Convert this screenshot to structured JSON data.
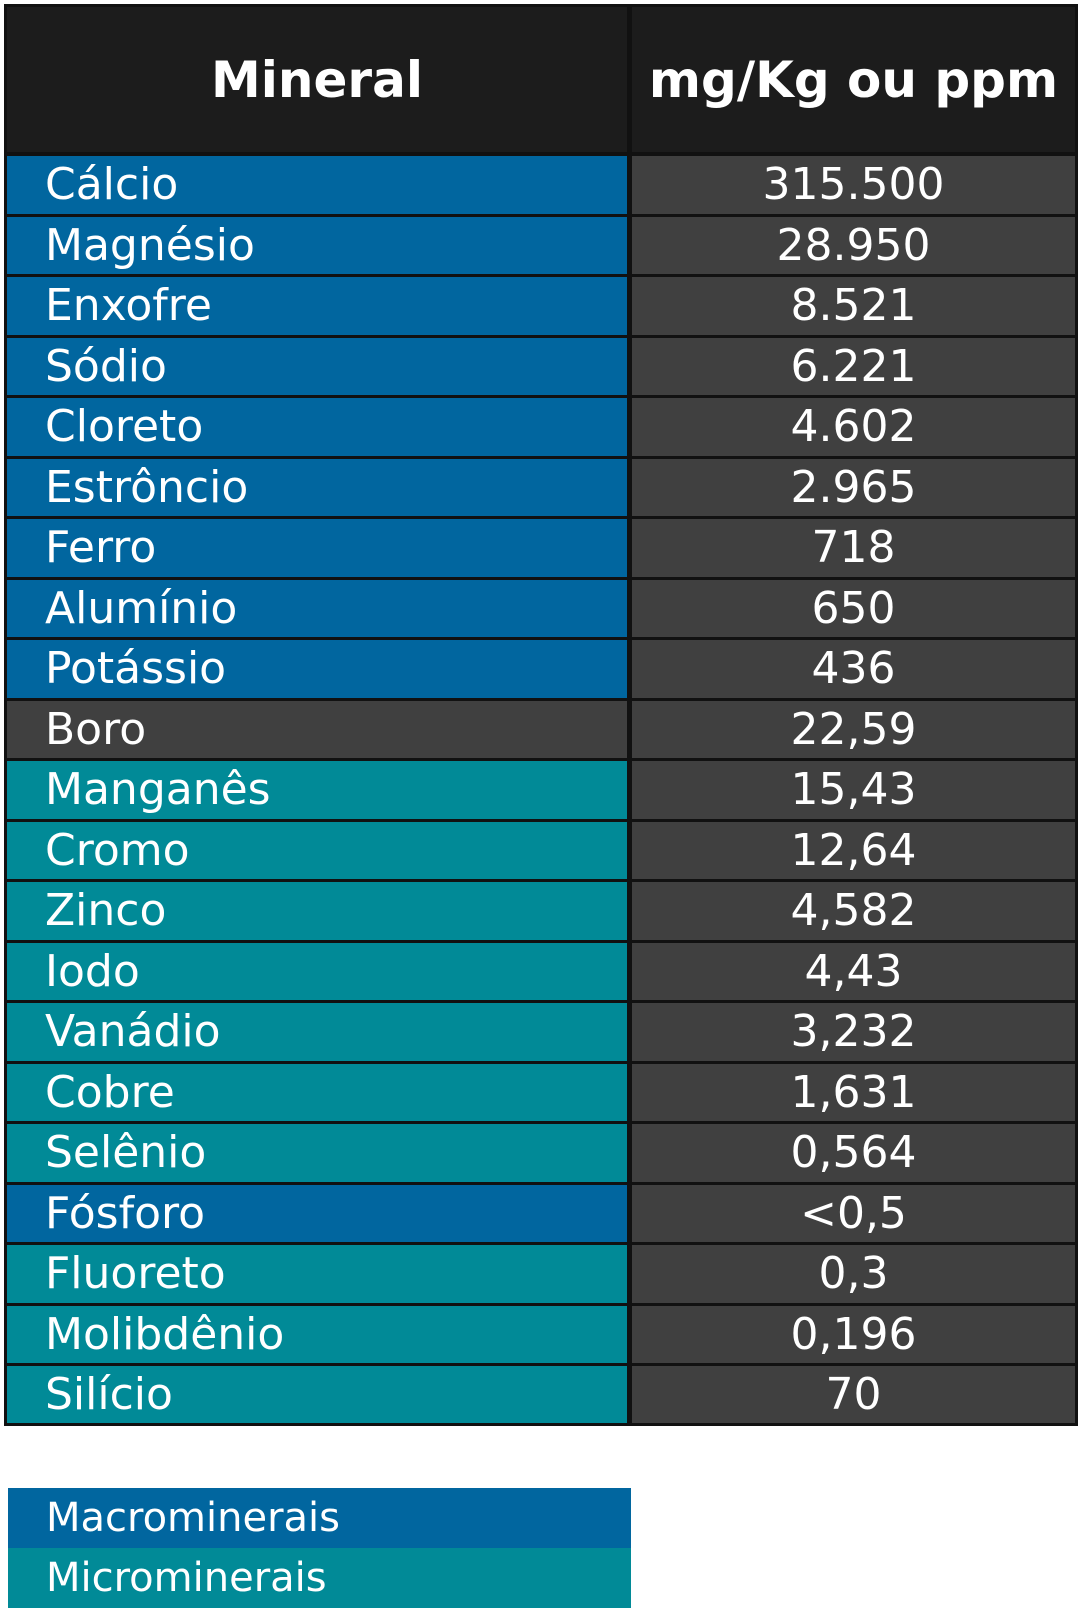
{
  "table": {
    "headers": [
      "Mineral",
      "mg/Kg ou ppm"
    ],
    "rows": [
      {
        "mineral": "Cálcio",
        "value": "315.500",
        "group": "macro"
      },
      {
        "mineral": "Magnésio",
        "value": "28.950",
        "group": "macro"
      },
      {
        "mineral": "Enxofre",
        "value": "8.521",
        "group": "macro"
      },
      {
        "mineral": "Sódio",
        "value": "6.221",
        "group": "macro"
      },
      {
        "mineral": "Cloreto",
        "value": "4.602",
        "group": "macro"
      },
      {
        "mineral": "Estrôncio",
        "value": "2.965",
        "group": "macro"
      },
      {
        "mineral": "Ferro",
        "value": "718",
        "group": "macro"
      },
      {
        "mineral": "Alumínio",
        "value": "650",
        "group": "macro"
      },
      {
        "mineral": "Potássio",
        "value": "436",
        "group": "macro"
      },
      {
        "mineral": "Boro",
        "value": "22,59",
        "group": "other"
      },
      {
        "mineral": "Manganês",
        "value": "15,43",
        "group": "micro"
      },
      {
        "mineral": "Cromo",
        "value": "12,64",
        "group": "micro"
      },
      {
        "mineral": "Zinco",
        "value": "4,582",
        "group": "micro"
      },
      {
        "mineral": "Iodo",
        "value": "4,43",
        "group": "micro"
      },
      {
        "mineral": "Vanádio",
        "value": "3,232",
        "group": "micro"
      },
      {
        "mineral": "Cobre",
        "value": "1,631",
        "group": "micro"
      },
      {
        "mineral": "Selênio",
        "value": "0,564",
        "group": "micro"
      },
      {
        "mineral": "Fósforo",
        "value": "<0,5",
        "group": "macro"
      },
      {
        "mineral": "Fluoreto",
        "value": "0,3",
        "group": "micro"
      },
      {
        "mineral": "Molibdênio",
        "value": "0,196",
        "group": "micro"
      },
      {
        "mineral": "Silício",
        "value": "70",
        "group": "micro"
      }
    ]
  },
  "legend": [
    {
      "label": "Macrominerais",
      "group": "macro"
    },
    {
      "label": "Microminerais",
      "group": "micro"
    }
  ],
  "colors": {
    "macro": "#01669f",
    "micro": "#018a97",
    "other": "#404040",
    "header": "#1c1c1c"
  }
}
